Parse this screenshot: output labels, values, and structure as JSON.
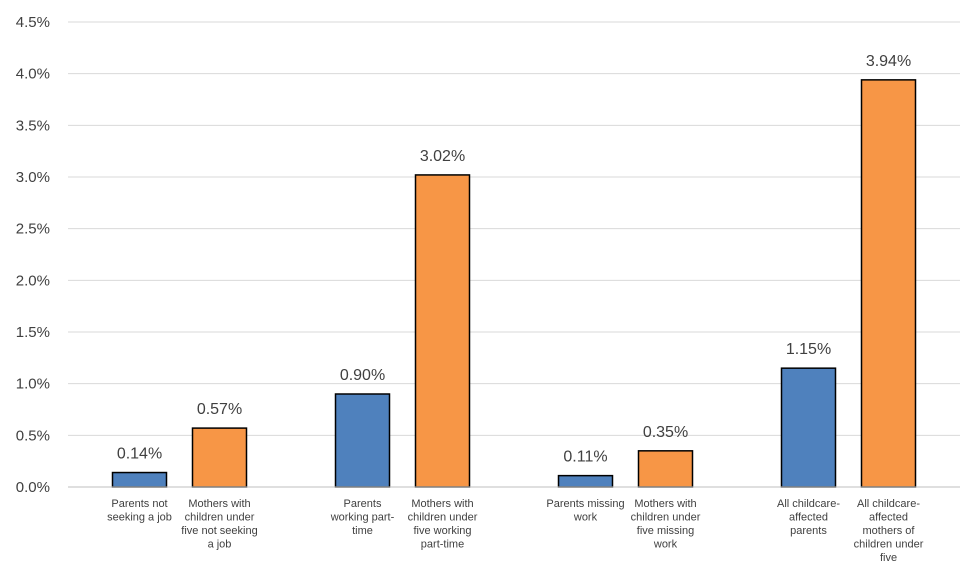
{
  "chart_data": {
    "type": "bar",
    "ylim": [
      0,
      4.5
    ],
    "yticks": [
      "0.0%",
      "0.5%",
      "1.0%",
      "1.5%",
      "2.0%",
      "2.5%",
      "3.0%",
      "3.5%",
      "4.0%",
      "4.5%"
    ],
    "grid": true,
    "legend": "none",
    "bars": [
      {
        "value": 0.14,
        "label": "0.14%",
        "series": 0,
        "category": [
          "Parents not",
          "seeking a job"
        ]
      },
      {
        "value": 0.57,
        "label": "0.57%",
        "series": 1,
        "category": [
          "Mothers with",
          "children under",
          "five not seeking",
          "a job"
        ]
      },
      {
        "value": 0.9,
        "label": "0.90%",
        "series": 0,
        "category": [
          "Parents",
          "working part-",
          "time"
        ]
      },
      {
        "value": 3.02,
        "label": "3.02%",
        "series": 1,
        "category": [
          "Mothers with",
          "children under",
          "five working",
          "part-time"
        ]
      },
      {
        "value": 0.11,
        "label": "0.11%",
        "series": 0,
        "category": [
          "Parents missing",
          "work"
        ]
      },
      {
        "value": 0.35,
        "label": "0.35%",
        "series": 1,
        "category": [
          "Mothers with",
          "children under",
          "five missing",
          "work"
        ]
      },
      {
        "value": 1.15,
        "label": "1.15%",
        "series": 0,
        "category": [
          "All childcare-",
          "affected",
          "parents"
        ]
      },
      {
        "value": 3.94,
        "label": "3.94%",
        "series": 1,
        "category": [
          "All childcare-",
          "affected",
          "mothers of",
          "children under",
          "five"
        ]
      }
    ],
    "colors": [
      "#4f81bd",
      "#f79646"
    ]
  }
}
